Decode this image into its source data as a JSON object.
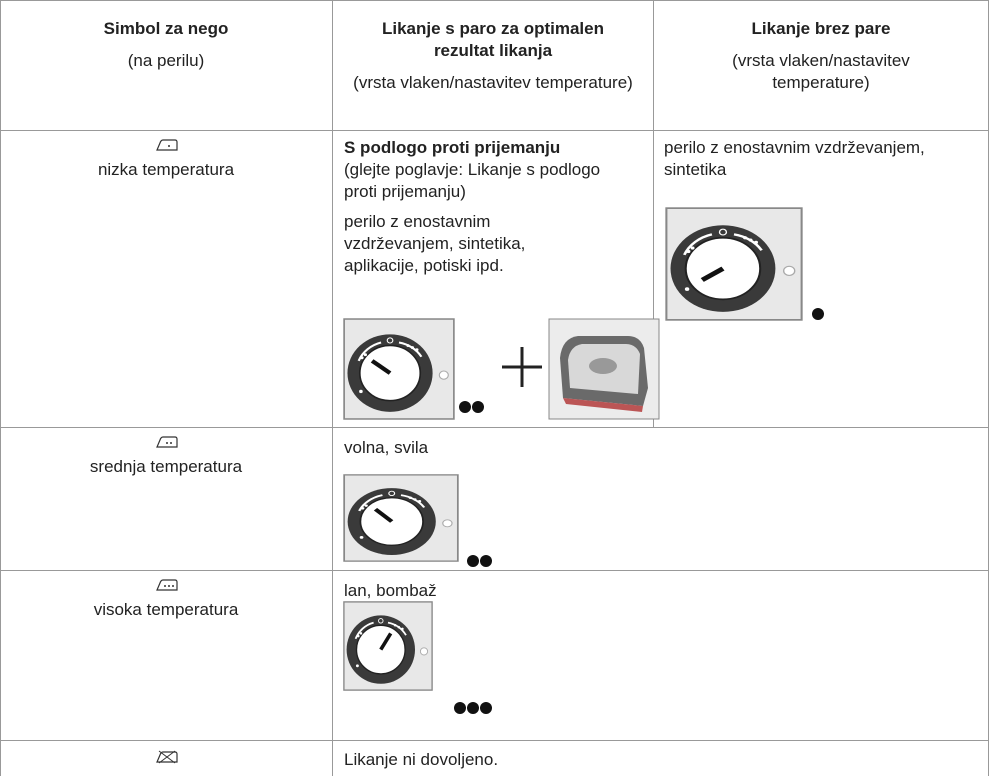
{
  "table": {
    "header": [
      {
        "title": "Simbol za nego",
        "subtitle": "(na perilu)"
      },
      {
        "title": "Likanje s paro za optimalen rezultat likanja",
        "subtitle": "(vrsta vlaken/nastavitev temperature)"
      },
      {
        "title": "Likanje brez pare",
        "subtitle": "(vrsta vlaken/nastavitev temperature)"
      }
    ],
    "rows": [
      {
        "symbol_label": "nizka temperatura",
        "steam": {
          "heading": "S podlogo proti prijemanju",
          "note": "(glejte poglavje: Likanje s podlogo proti prijemanju)",
          "text": "perilo z enostavnim vzdrževanjem, sintetika, aplikacije, potiski ipd."
        },
        "dry": {
          "text": "perilo z enostavnim vzdrževanjem, sintetika"
        }
      },
      {
        "symbol_label": "srednja temperatura",
        "steam": {
          "text": "volna, svila"
        }
      },
      {
        "symbol_label": "visoka temperatura",
        "steam": {
          "text": "lan, bombaž"
        }
      },
      {
        "steam": {
          "text": "Likanje ni dovoljeno."
        }
      }
    ]
  }
}
